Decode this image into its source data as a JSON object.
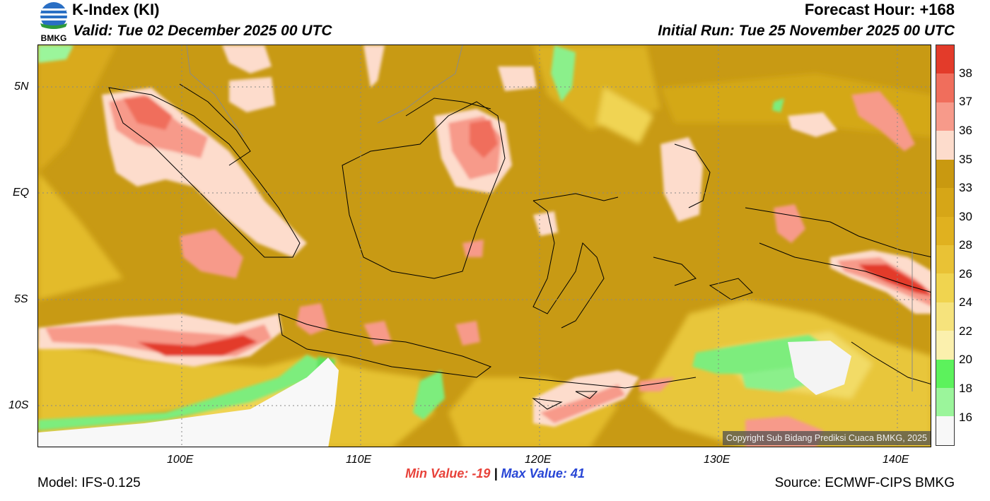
{
  "header": {
    "title": "K-Index (KI)",
    "valid": "Valid: Tue 02 December 2025 00 UTC",
    "forecast_hour": "Forecast Hour: +168",
    "initial_run": "Initial Run: Tue 25 November 2025 00 UTC",
    "logo_text": "BMKG"
  },
  "map": {
    "lat_labels": [
      "5N",
      "EQ",
      "5S",
      "10S"
    ],
    "lon_labels": [
      "100E",
      "110E",
      "120E",
      "130E",
      "140E"
    ],
    "copyright": "Copyright Sub Bidang Prediksi Cuaca BMKG, 2025"
  },
  "colorbar": {
    "labels": [
      "38",
      "37",
      "36",
      "35",
      "33",
      "30",
      "28",
      "26",
      "24",
      "22",
      "20",
      "18",
      "16"
    ],
    "colors": [
      "#e33b2a",
      "#f06e5c",
      "#f79a8a",
      "#fddccc",
      "#c99910",
      "#d6a617",
      "#e0b11f",
      "#e9c235",
      "#f0d44f",
      "#f6e37c",
      "#fbf0ad",
      "#5cf25c",
      "#9bf59b",
      "#f8f8f8"
    ]
  },
  "stats": {
    "min_label": "Min Value:",
    "min_value": "-19",
    "separator": "|",
    "max_label": "Max Value:",
    "max_value": "41"
  },
  "footer": {
    "model": "Model: IFS-0.125",
    "source": "Source: ECMWF-CIPS BMKG"
  }
}
